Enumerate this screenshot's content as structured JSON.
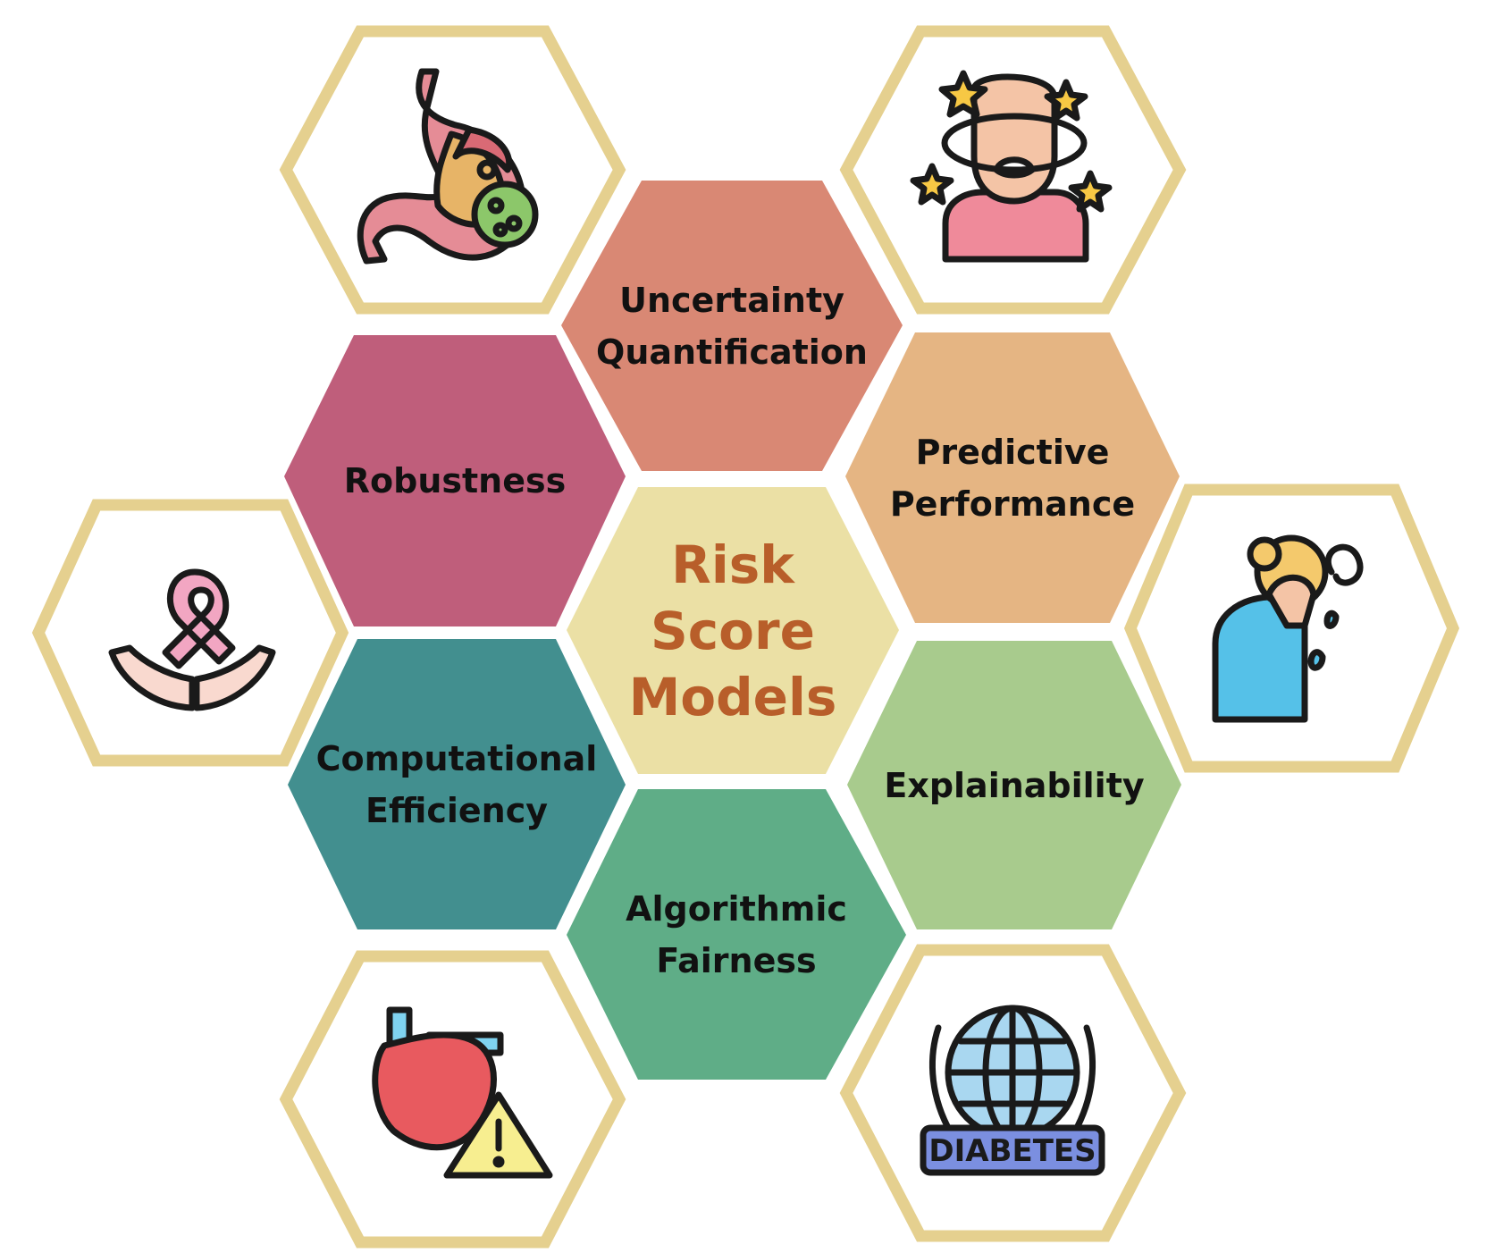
{
  "center": {
    "lines": [
      "Risk",
      "Score",
      "Models"
    ]
  },
  "center_color": "#B85E2A",
  "criteria": [
    {
      "id": "uncertainty",
      "lines": [
        "Uncertainty",
        "Quantification"
      ],
      "color": "#D98874"
    },
    {
      "id": "robustness",
      "lines": [
        "Robustness"
      ],
      "color": "#BF5E7B"
    },
    {
      "id": "predictive",
      "lines": [
        "Predictive",
        "Performance"
      ],
      "color": "#E5B583"
    },
    {
      "id": "computational",
      "lines": [
        "Computational",
        "Efficiency"
      ],
      "color": "#428F8F"
    },
    {
      "id": "explainability",
      "lines": [
        "Explainability"
      ],
      "color": "#A8CB8D"
    },
    {
      "id": "fairness",
      "lines": [
        "Algorithmic",
        "Fairness"
      ],
      "color": "#5FAD87"
    }
  ],
  "center_fill": "#EBE0A5",
  "outline_color": "#E5D08F",
  "icons": [
    {
      "id": "stomach",
      "name": "stomach-virus-icon"
    },
    {
      "id": "dizzy",
      "name": "dizzy-person-icon"
    },
    {
      "id": "ribbon",
      "name": "cancer-ribbon-hands-icon"
    },
    {
      "id": "crying",
      "name": "crying-person-icon"
    },
    {
      "id": "heart",
      "name": "heart-warning-icon"
    },
    {
      "id": "diabetes",
      "name": "diabetes-globe-icon",
      "badge_text": "DIABETES"
    }
  ]
}
